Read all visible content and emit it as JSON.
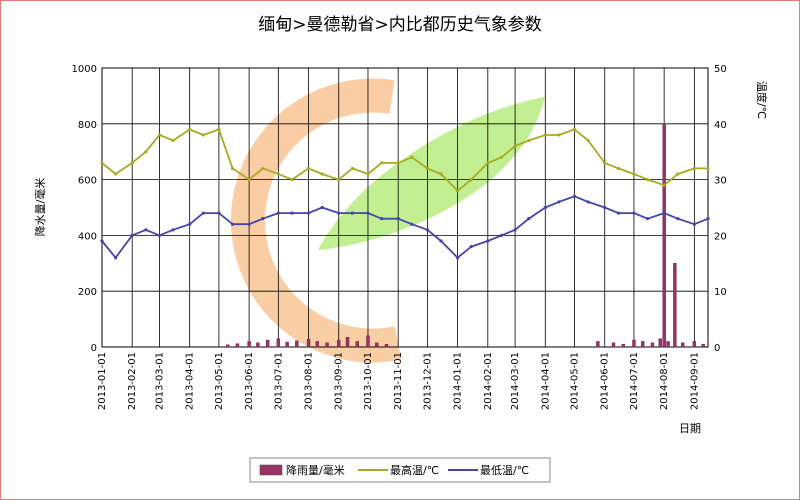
{
  "chart_data": {
    "type": "line",
    "title": "缅甸>曼德勒省>内比都历史气象参数",
    "xlabel": "日期",
    "ylabel_left": "降水量/毫米",
    "ylabel_right": "温度/℃",
    "ylim_left": [
      0,
      1000
    ],
    "ylim_right": [
      0,
      50
    ],
    "yticks_left": [
      "0",
      "200",
      "400",
      "600",
      "800",
      "1000"
    ],
    "yticks_right": [
      "0",
      "10",
      "20",
      "30",
      "40",
      "50"
    ],
    "x_start": "2013-01-01",
    "x_end": "2014-09-15",
    "x_ticks": [
      "2013-01-01",
      "2013-02-01",
      "2013-03-01",
      "2013-04-01",
      "2013-05-01",
      "2013-06-01",
      "2013-07-01",
      "2013-08-01",
      "2013-09-01",
      "2013-10-01",
      "2013-11-01",
      "2013-12-01",
      "2014-01-01",
      "2014-02-01",
      "2014-03-01",
      "2014-04-01",
      "2014-05-01",
      "2014-06-01",
      "2014-07-01",
      "2014-08-01",
      "2014-09-01"
    ],
    "grid": true,
    "legend_position": "bottom",
    "series": [
      {
        "name": "降雨量/毫米",
        "kind": "bar",
        "axis": "left",
        "color": "#993366",
        "x": [
          "2013-05-10",
          "2013-05-20",
          "2013-06-01",
          "2013-06-10",
          "2013-06-20",
          "2013-07-01",
          "2013-07-10",
          "2013-07-20",
          "2013-08-01",
          "2013-08-10",
          "2013-08-20",
          "2013-09-01",
          "2013-09-10",
          "2013-09-20",
          "2013-10-01",
          "2013-10-10",
          "2013-10-20",
          "2014-05-25",
          "2014-06-10",
          "2014-06-20",
          "2014-07-01",
          "2014-07-10",
          "2014-07-20",
          "2014-07-28",
          "2014-08-01",
          "2014-08-05",
          "2014-08-12",
          "2014-08-20",
          "2014-09-01",
          "2014-09-10"
        ],
        "values": [
          8,
          12,
          20,
          15,
          25,
          30,
          18,
          22,
          28,
          20,
          15,
          25,
          35,
          20,
          40,
          15,
          10,
          20,
          15,
          10,
          25,
          20,
          15,
          30,
          800,
          20,
          300,
          15,
          20,
          10
        ]
      },
      {
        "name": "最高温/℃",
        "kind": "line",
        "axis": "right",
        "color": "#aaaa22",
        "x": [
          "2013-01-01",
          "2013-01-15",
          "2013-02-01",
          "2013-02-15",
          "2013-03-01",
          "2013-03-15",
          "2013-04-01",
          "2013-04-15",
          "2013-05-01",
          "2013-05-15",
          "2013-06-01",
          "2013-06-15",
          "2013-07-01",
          "2013-07-15",
          "2013-08-01",
          "2013-08-15",
          "2013-09-01",
          "2013-09-15",
          "2013-10-01",
          "2013-10-15",
          "2013-11-01",
          "2013-11-15",
          "2013-12-01",
          "2013-12-15",
          "2014-01-01",
          "2014-01-15",
          "2014-02-01",
          "2014-02-15",
          "2014-03-01",
          "2014-03-15",
          "2014-04-01",
          "2014-04-15",
          "2014-05-01",
          "2014-05-15",
          "2014-06-01",
          "2014-06-15",
          "2014-07-01",
          "2014-07-15",
          "2014-08-01",
          "2014-08-15",
          "2014-09-01",
          "2014-09-15"
        ],
        "values": [
          33,
          31,
          33,
          35,
          38,
          37,
          39,
          38,
          39,
          32,
          30,
          32,
          31,
          30,
          32,
          31,
          30,
          32,
          31,
          33,
          33,
          34,
          32,
          31,
          28,
          30,
          33,
          34,
          36,
          37,
          38,
          38,
          39,
          37,
          33,
          32,
          31,
          30,
          29,
          31,
          32,
          32
        ]
      },
      {
        "name": "最低温/℃",
        "kind": "line",
        "axis": "right",
        "color": "#4444aa",
        "x": [
          "2013-01-01",
          "2013-01-15",
          "2013-02-01",
          "2013-02-15",
          "2013-03-01",
          "2013-03-15",
          "2013-04-01",
          "2013-04-15",
          "2013-05-01",
          "2013-05-15",
          "2013-06-01",
          "2013-06-15",
          "2013-07-01",
          "2013-07-15",
          "2013-08-01",
          "2013-08-15",
          "2013-09-01",
          "2013-09-15",
          "2013-10-01",
          "2013-10-15",
          "2013-11-01",
          "2013-11-15",
          "2013-12-01",
          "2013-12-15",
          "2014-01-01",
          "2014-01-15",
          "2014-02-01",
          "2014-02-15",
          "2014-03-01",
          "2014-03-15",
          "2014-04-01",
          "2014-04-15",
          "2014-05-01",
          "2014-05-15",
          "2014-06-01",
          "2014-06-15",
          "2014-07-01",
          "2014-07-15",
          "2014-08-01",
          "2014-08-15",
          "2014-09-01",
          "2014-09-15"
        ],
        "values": [
          19,
          16,
          20,
          21,
          20,
          21,
          22,
          24,
          24,
          22,
          22,
          23,
          24,
          24,
          24,
          25,
          24,
          24,
          24,
          23,
          23,
          22,
          21,
          19,
          16,
          18,
          19,
          20,
          21,
          23,
          25,
          26,
          27,
          26,
          25,
          24,
          24,
          23,
          24,
          23,
          22,
          23
        ]
      }
    ]
  }
}
